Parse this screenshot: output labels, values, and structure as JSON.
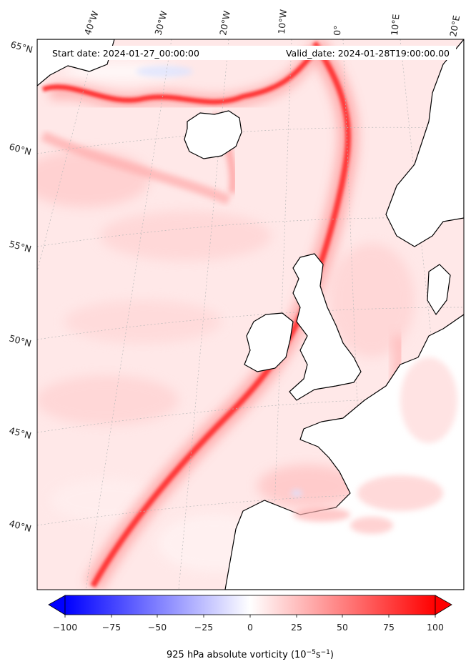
{
  "map": {
    "start_date": "Start date: 2024-01-27_00:00:00",
    "valid_date": "Valid_date: 2024-01-28T19:00:00.00",
    "lon_labels": [
      "40°W",
      "30°W",
      "20°W",
      "10°W",
      "0°",
      "10°E",
      "20°E"
    ],
    "lat_labels": [
      "65°N",
      "60°N",
      "55°N",
      "50°N",
      "45°N",
      "40°N"
    ],
    "projection": "Lambert conformal (North Atlantic / Europe)",
    "gridlines": true
  },
  "colorbar": {
    "ticks": [
      "−100",
      "−75",
      "−50",
      "−25",
      "0",
      "25",
      "50",
      "75",
      "100"
    ],
    "min": -100,
    "max": 100,
    "extend": "both",
    "label": "925 hPa absolute vorticity (10",
    "label_exp1": "−5",
    "label_mid": "s",
    "label_exp2": "−1",
    "label_end": ")",
    "cmap": "bwr",
    "colors": {
      "neg": "#0000ff",
      "mid": "#ffffff",
      "pos": "#ff0000"
    }
  },
  "colors": {
    "land": "#ffffff",
    "background_field": "#ffe6e6",
    "coast": "#000000",
    "grid": "#b0b0b0",
    "frontal_band": "#ff1a1a"
  }
}
